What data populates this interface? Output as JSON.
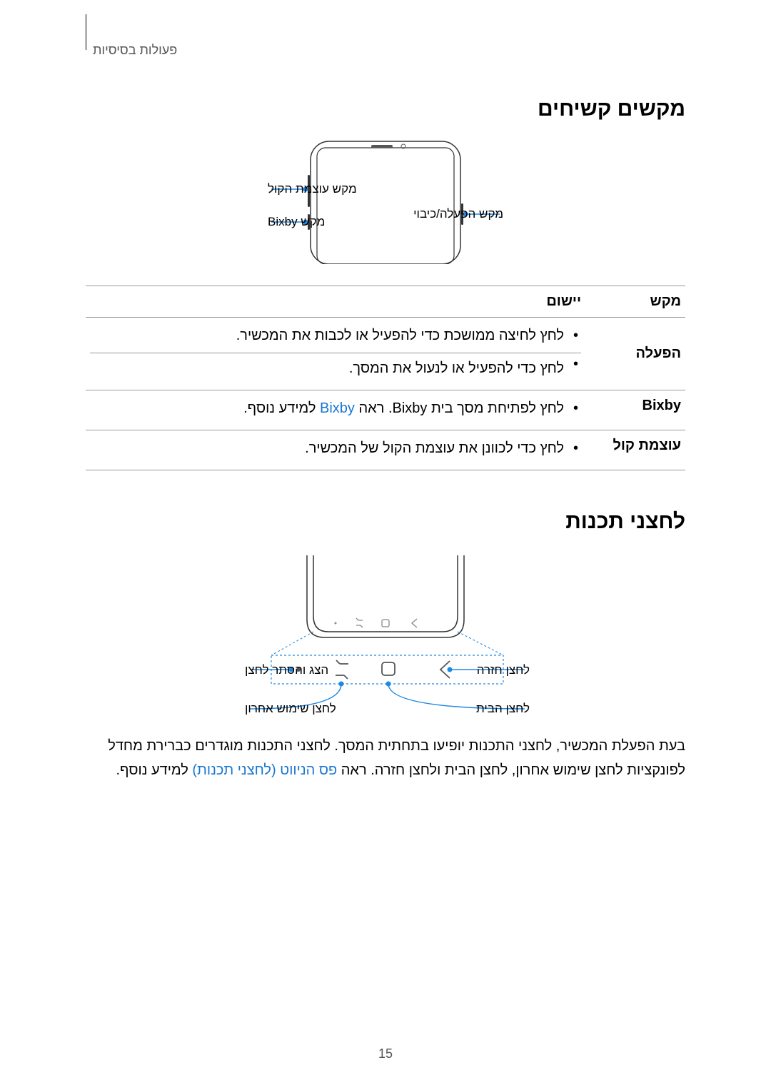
{
  "breadcrumb": "פעולות בסיסיות",
  "section1_title": "מקשים קשיחים",
  "phone1_labels": {
    "volume": "מקש עוצמת הקול",
    "bixby": "מקש Bixby",
    "power": "מקש הפעלה/כיבוי"
  },
  "table": {
    "header_key": "מקש",
    "header_app": "יישום",
    "rows": [
      {
        "key": "הפעלה",
        "items": [
          "לחץ לחיצה ממושכת כדי להפעיל או לכבות את המכשיר.",
          "לחץ כדי להפעיל או לנעול את המסך."
        ]
      },
      {
        "key": "Bixby",
        "items_html": "לחץ לפתיחת מסך בית Bixby. ראה <span class=\"link\">Bixby</span> למידע נוסף."
      },
      {
        "key": "עוצמת קול",
        "items": [
          "לחץ כדי לכוונן את עוצמת הקול של המכשיר."
        ]
      }
    ]
  },
  "section2_title": "לחצני תכנות",
  "phone2_labels": {
    "back": "לחצן חזרה",
    "home": "לחצן הבית",
    "recent": "לחצן שימוש אחרון",
    "toggle": "הצג והסתר לחצן"
  },
  "body_text_prefix": "בעת הפעלת המכשיר, לחצני התכנות יופיעו בתחתית המסך. לחצני התכנות מוגדרים כברירת מחדל לפונקציות לחצן שימוש אחרון, לחצן הבית ולחצן חזרה. ראה ",
  "body_text_link": "פס הניווט (לחצני תכנות)",
  "body_text_suffix": " למידע נוסף.",
  "page_number": "15",
  "colors": {
    "link": "#1976d2",
    "callout": "#1e88e5"
  }
}
